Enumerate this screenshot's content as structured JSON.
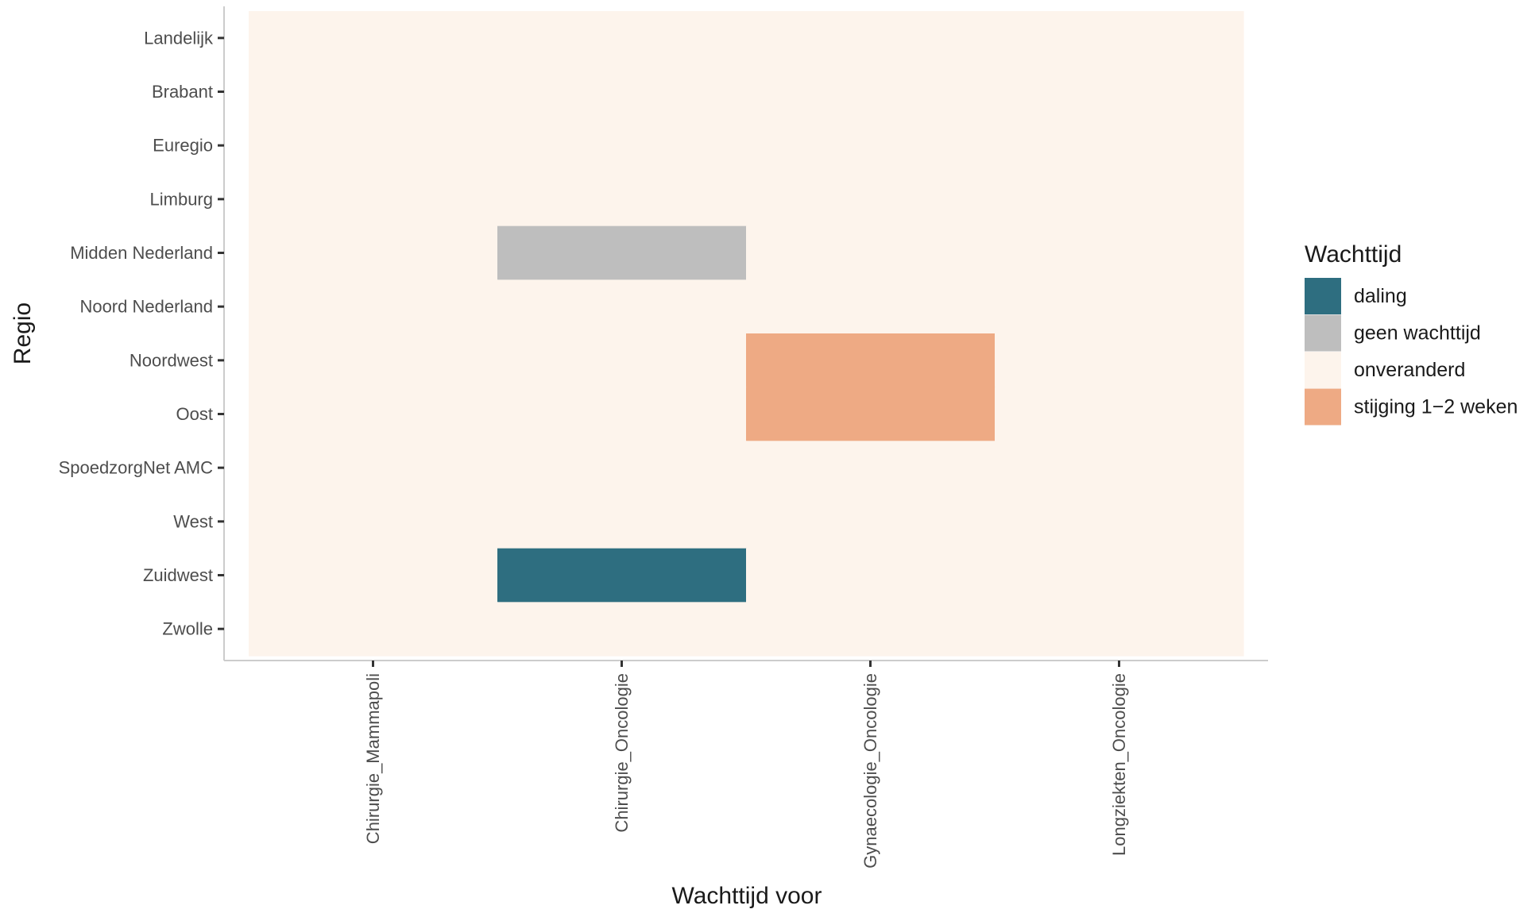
{
  "chart_data": {
    "type": "heatmap",
    "xlabel": "Wachttijd voor",
    "ylabel": "Regio",
    "x_categories": [
      "Chirurgie_Mammapoli",
      "Chirurgie_Oncologie",
      "Gynaecologie_Oncologie",
      "Longziekten_Oncologie"
    ],
    "y_categories": [
      "Landelijk",
      "Brabant",
      "Euregio",
      "Limburg",
      "Midden Nederland",
      "Noord Nederland",
      "Noordwest",
      "Oost",
      "SpoedzorgNet AMC",
      "West",
      "Zuidwest",
      "Zwolle"
    ],
    "legend": {
      "title": "Wachttijd",
      "position": "right",
      "items": [
        {
          "label": "daling",
          "color": "#2e6e80"
        },
        {
          "label": "geen wachttijd",
          "color": "#bebebe"
        },
        {
          "label": "onveranderd",
          "color": "#fdf4ec"
        },
        {
          "label": "stijging 1−2 weken",
          "color": "#eeaa84"
        }
      ]
    },
    "cells": [
      [
        "onveranderd",
        "onveranderd",
        "onveranderd",
        "onveranderd"
      ],
      [
        "onveranderd",
        "onveranderd",
        "onveranderd",
        "onveranderd"
      ],
      [
        "onveranderd",
        "onveranderd",
        "onveranderd",
        "onveranderd"
      ],
      [
        "onveranderd",
        "onveranderd",
        "onveranderd",
        "onveranderd"
      ],
      [
        "onveranderd",
        "geen wachttijd",
        "onveranderd",
        "onveranderd"
      ],
      [
        "onveranderd",
        "onveranderd",
        "onveranderd",
        "onveranderd"
      ],
      [
        "onveranderd",
        "onveranderd",
        "stijging 1−2 weken",
        "onveranderd"
      ],
      [
        "onveranderd",
        "onveranderd",
        "stijging 1−2 weken",
        "onveranderd"
      ],
      [
        "onveranderd",
        "onveranderd",
        "onveranderd",
        "onveranderd"
      ],
      [
        "onveranderd",
        "onveranderd",
        "onveranderd",
        "onveranderd"
      ],
      [
        "onveranderd",
        "daling",
        "onveranderd",
        "onveranderd"
      ],
      [
        "onveranderd",
        "onveranderd",
        "onveranderd",
        "onveranderd"
      ]
    ],
    "grid": false
  }
}
